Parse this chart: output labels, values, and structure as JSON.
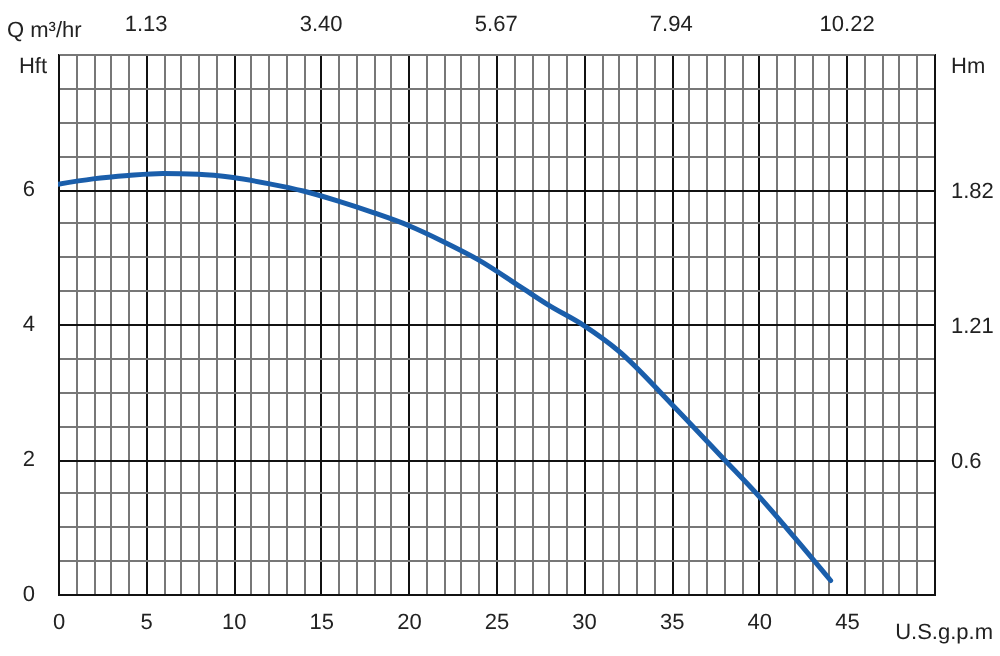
{
  "chart_data": {
    "type": "line",
    "xlabel": "U.S.g.p.m",
    "ylabel": "Hft",
    "y2label": "Hm",
    "x2label": "Q m³/hr",
    "x": [
      0,
      2,
      4,
      6,
      8,
      10,
      12,
      14,
      16,
      18,
      20,
      22,
      24,
      26.4,
      28,
      30,
      32,
      35,
      38,
      40,
      42,
      44.1
    ],
    "series": [
      {
        "color": "#1a5eab",
        "values": [
          6.07,
          6.15,
          6.2,
          6.23,
          6.22,
          6.17,
          6.08,
          5.97,
          5.82,
          5.65,
          5.46,
          5.22,
          4.95,
          4.55,
          4.28,
          3.98,
          3.6,
          2.82,
          2.0,
          1.45,
          0.85,
          0.2
        ]
      }
    ],
    "xlim": [
      0,
      50
    ],
    "ylim": [
      0,
      8
    ],
    "x2lim": [
      0,
      11.36
    ],
    "y2lim": [
      0,
      2.438
    ],
    "xticks": [
      0,
      {
        "value": 1,
        "label": null
      },
      {
        "value": 2,
        "label": null
      },
      {
        "value": 3,
        "label": null
      },
      {
        "value": 4,
        "label": null
      },
      5,
      {
        "value": 6,
        "label": null
      },
      {
        "value": 7,
        "label": null
      },
      {
        "value": 8,
        "label": null
      },
      {
        "value": 9,
        "label": null
      },
      10,
      {
        "value": 11,
        "label": null
      },
      {
        "value": 12,
        "label": null
      },
      {
        "value": 13,
        "label": null
      },
      {
        "value": 14,
        "label": null
      },
      15,
      {
        "value": 16,
        "label": null
      },
      {
        "value": 17,
        "label": null
      },
      {
        "value": 18,
        "label": null
      },
      {
        "value": 19,
        "label": null
      },
      20,
      {
        "value": 21,
        "label": null
      },
      {
        "value": 22,
        "label": null
      },
      {
        "value": 23,
        "label": null
      },
      {
        "value": 24,
        "label": null
      },
      25,
      {
        "value": 26,
        "label": null
      },
      {
        "value": 27,
        "label": null
      },
      {
        "value": 28,
        "label": null
      },
      {
        "value": 29,
        "label": null
      },
      30,
      {
        "value": 31,
        "label": null
      },
      {
        "value": 32,
        "label": null
      },
      {
        "value": 33,
        "label": null
      },
      {
        "value": 34,
        "label": null
      },
      35,
      {
        "value": 36,
        "label": null
      },
      {
        "value": 37,
        "label": null
      },
      {
        "value": 38,
        "label": null
      },
      {
        "value": 39,
        "label": null
      },
      40,
      {
        "value": 41,
        "label": null
      },
      {
        "value": 42,
        "label": null
      },
      {
        "value": 43,
        "label": null
      },
      {
        "value": 44,
        "label": null
      },
      45,
      {
        "value": 46,
        "label": null
      },
      {
        "value": 47,
        "label": null
      },
      {
        "value": 48,
        "label": null
      },
      {
        "value": 49,
        "label": null
      },
      {
        "value": 50,
        "label": null
      }
    ],
    "yticks": [
      0,
      {
        "value": 0.5,
        "label": null
      },
      {
        "value": 1,
        "label": null
      },
      {
        "value": 1.5,
        "label": null
      },
      2,
      {
        "value": 2.5,
        "label": null
      },
      {
        "value": 3,
        "label": null
      },
      {
        "value": 3.5,
        "label": null
      },
      4,
      {
        "value": 4.5,
        "label": null
      },
      {
        "value": 5,
        "label": null
      },
      {
        "value": 5.5,
        "label": null
      },
      6,
      {
        "value": 6.5,
        "label": null
      },
      {
        "value": 7,
        "label": null
      },
      {
        "value": 7.5,
        "label": null
      },
      {
        "value": 8,
        "label": null
      }
    ],
    "x2ticks": [
      1.13,
      {
        "value": 3.4,
        "label": "3.40"
      },
      5.67,
      7.94,
      10.22
    ],
    "y2ticks": [
      0.6,
      1.21,
      1.82
    ],
    "grid": true,
    "marker": "none",
    "line_style": "solid"
  }
}
